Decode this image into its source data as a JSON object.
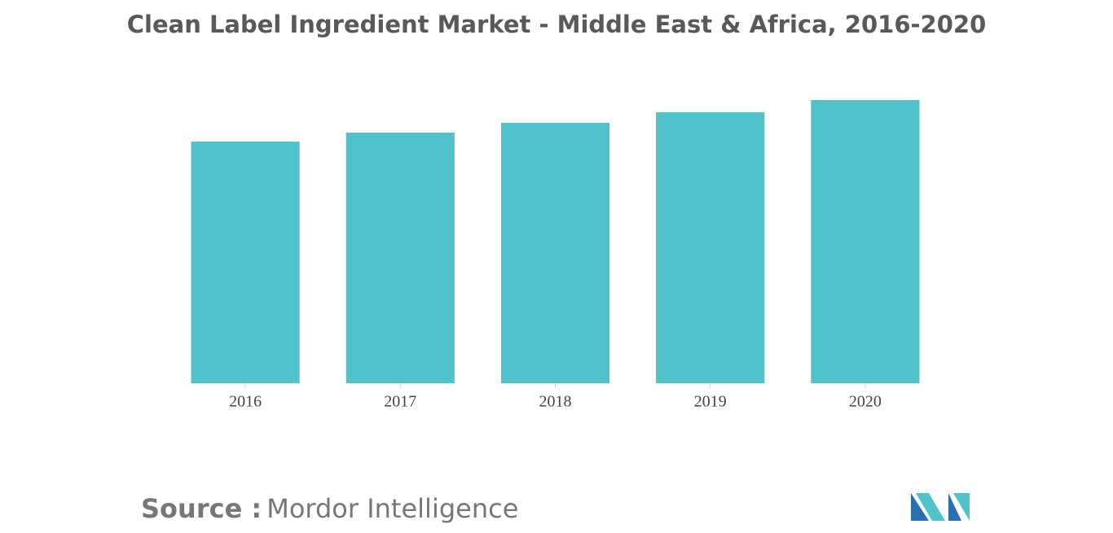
{
  "chart_data": {
    "type": "bar",
    "title": "Clean Label Ingredient Market - Middle East & Africa, 2016-2020",
    "categories": [
      "2016",
      "2017",
      "2018",
      "2019",
      "2020"
    ],
    "values": [
      297,
      308,
      320,
      333,
      348
    ],
    "color": "#4fc3c9",
    "ylim": [
      0,
      400
    ]
  },
  "footer": {
    "label": "Source :",
    "text": "Mordor Intelligence"
  }
}
